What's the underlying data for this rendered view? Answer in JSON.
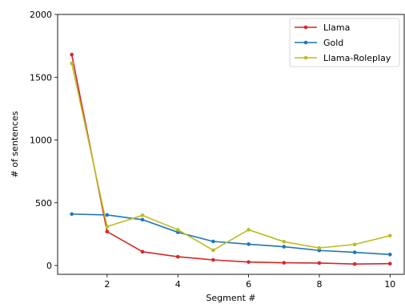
{
  "chart_data": {
    "type": "line",
    "xlabel": "Segment #",
    "ylabel": "# of sentences",
    "xlim": [
      0.6,
      10.4
    ],
    "ylim": [
      -70,
      2000
    ],
    "x_ticks": [
      2,
      4,
      6,
      8,
      10
    ],
    "y_ticks": [
      0,
      500,
      1000,
      1500,
      2000
    ],
    "x_tick_labels": [
      "2",
      "4",
      "6",
      "8",
      "10"
    ],
    "y_tick_labels": [
      "0",
      "500",
      "1000",
      "1500",
      "2000"
    ],
    "grid": false,
    "legend_position": "top-right",
    "x": [
      1,
      2,
      3,
      4,
      5,
      6,
      7,
      8,
      9,
      10
    ],
    "series": [
      {
        "name": "Llama",
        "color": "#d62728",
        "values": [
          1680,
          270,
          110,
          70,
          45,
          28,
          22,
          20,
          12,
          15
        ]
      },
      {
        "name": "Gold",
        "color": "#1f77b4",
        "values": [
          410,
          403,
          365,
          265,
          192,
          170,
          150,
          120,
          105,
          88
        ]
      },
      {
        "name": "Llama-Roleplay",
        "color": "#bcbd22",
        "values": [
          1610,
          310,
          400,
          285,
          122,
          285,
          190,
          140,
          168,
          238
        ]
      }
    ]
  }
}
